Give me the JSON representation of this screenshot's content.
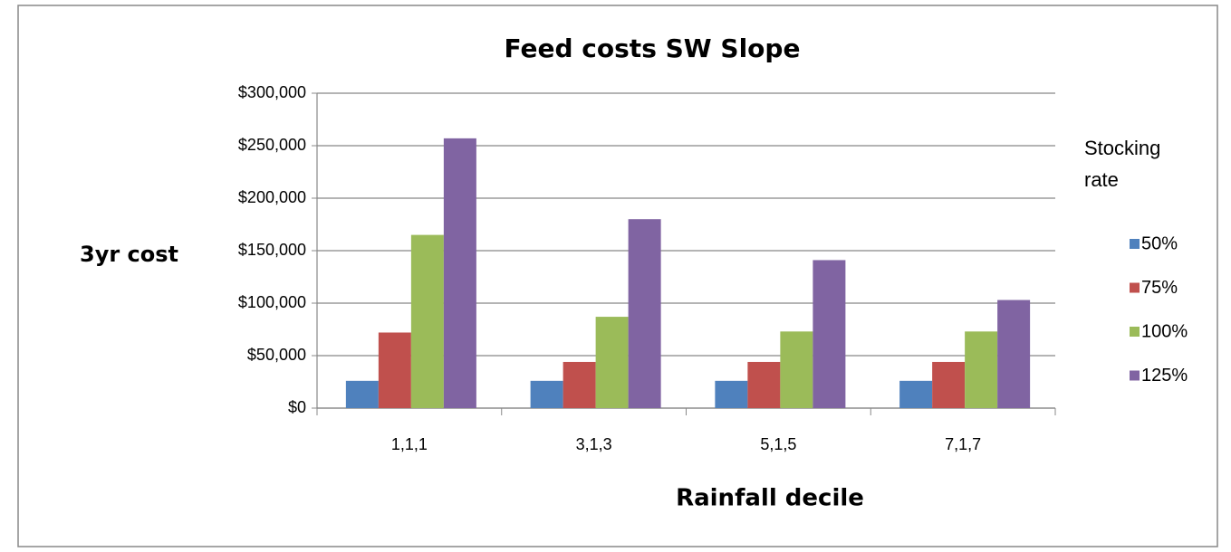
{
  "chart_data": {
    "type": "bar",
    "title": "Feed costs SW Slope",
    "x_label": "Rainfall decile",
    "y_label": "3yr cost",
    "legend_title": "Stocking rate",
    "categories": [
      "1,1,1",
      "3,1,3",
      "5,1,5",
      "7,1,7"
    ],
    "series": [
      {
        "name": "50%",
        "color": "#4f81bd",
        "values": [
          26000,
          26000,
          26000,
          26000
        ]
      },
      {
        "name": "75%",
        "color": "#c0504d",
        "values": [
          72000,
          44000,
          44000,
          44000
        ]
      },
      {
        "name": "100%",
        "color": "#9bbb59",
        "values": [
          165000,
          87000,
          73000,
          73000
        ]
      },
      {
        "name": "125%",
        "color": "#8064a2",
        "values": [
          257000,
          180000,
          141000,
          103000
        ]
      }
    ],
    "ylim": [
      0,
      300000
    ],
    "yticks": [
      {
        "value": 0,
        "label": "$0"
      },
      {
        "value": 50000,
        "label": "$50,000"
      },
      {
        "value": 100000,
        "label": "$100,000"
      },
      {
        "value": 150000,
        "label": "$150,000"
      },
      {
        "value": 200000,
        "label": "$200,000"
      },
      {
        "value": 250000,
        "label": "$250,000"
      },
      {
        "value": 300000,
        "label": "$300,000"
      }
    ],
    "grid": true,
    "legend": "right"
  }
}
